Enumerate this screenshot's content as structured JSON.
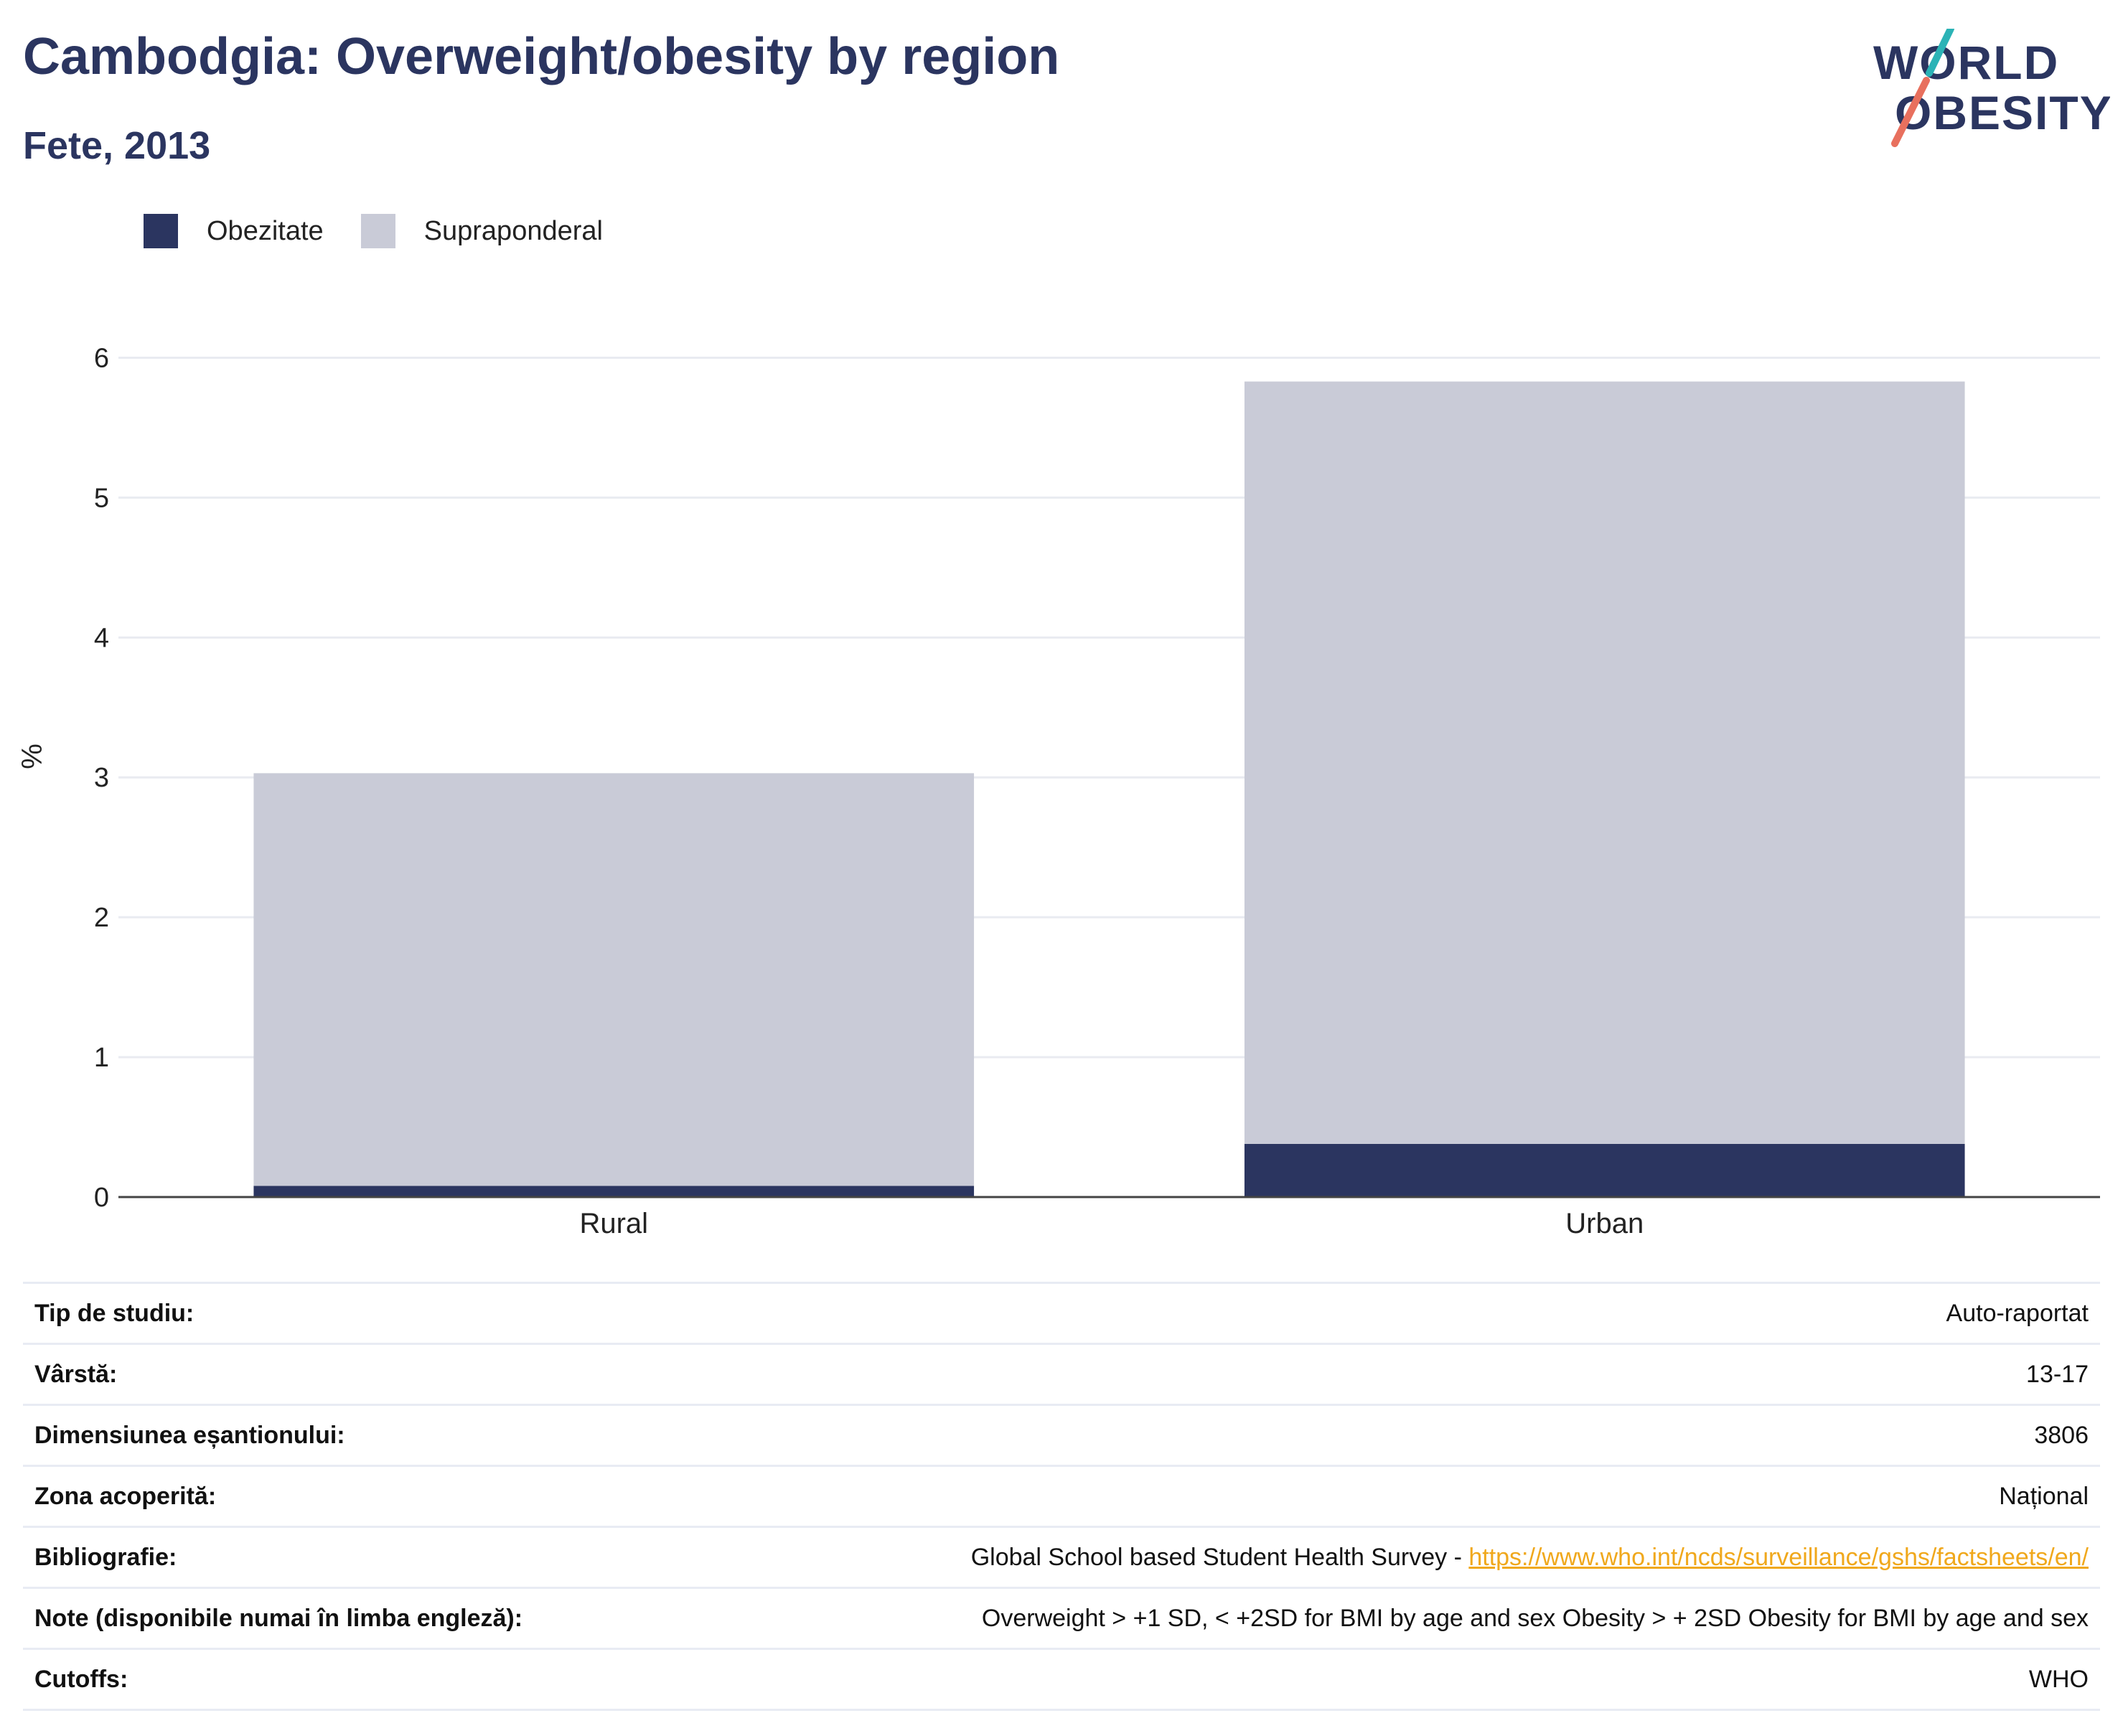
{
  "title": "Cambodgia: Overweight/obesity by region",
  "subtitle": "Fete, 2013",
  "logo": {
    "line1": "WORLD",
    "line2": "OBESITY",
    "colors": {
      "text": "#2b3560",
      "slash_top": "#2bb3b6",
      "slash_bottom": "#e8705e"
    }
  },
  "legend": [
    {
      "label": "Obezitate",
      "color": "#2b3560"
    },
    {
      "label": "Supraponderal",
      "color": "#c9cbd7"
    }
  ],
  "chart_data": {
    "type": "bar",
    "stacked": true,
    "categories": [
      "Rural",
      "Urban"
    ],
    "series": [
      {
        "name": "Obezitate",
        "color": "#2b3560",
        "values": [
          0.08,
          0.38
        ]
      },
      {
        "name": "Supraponderal",
        "color": "#c9cbd7",
        "values": [
          2.95,
          5.45
        ]
      }
    ],
    "ylabel": "%",
    "yticks": [
      0,
      1,
      2,
      3,
      4,
      5,
      6
    ],
    "ylim": [
      0,
      6.3
    ],
    "grid": true,
    "legend_position": "top-left"
  },
  "info": [
    {
      "label": "Tip de studiu:",
      "value": "Auto-raportat"
    },
    {
      "label": "Vârstă:",
      "value": "13-17"
    },
    {
      "label": "Dimensiunea eșantionului:",
      "value": "3806"
    },
    {
      "label": "Zona acoperită:",
      "value": "Național"
    },
    {
      "label": "Bibliografie:",
      "value": "Global School based Student Health Survey - ",
      "link": "https://www.who.int/ncds/surveillance/gshs/factsheets/en/"
    },
    {
      "label": "Note (disponibile numai în limba engleză):",
      "value": "Overweight > +1 SD, < +2SD for BMI by age and sex Obesity > + 2SD Obesity for BMI by age and sex"
    },
    {
      "label": "Cutoffs:",
      "value": "WHO"
    }
  ]
}
